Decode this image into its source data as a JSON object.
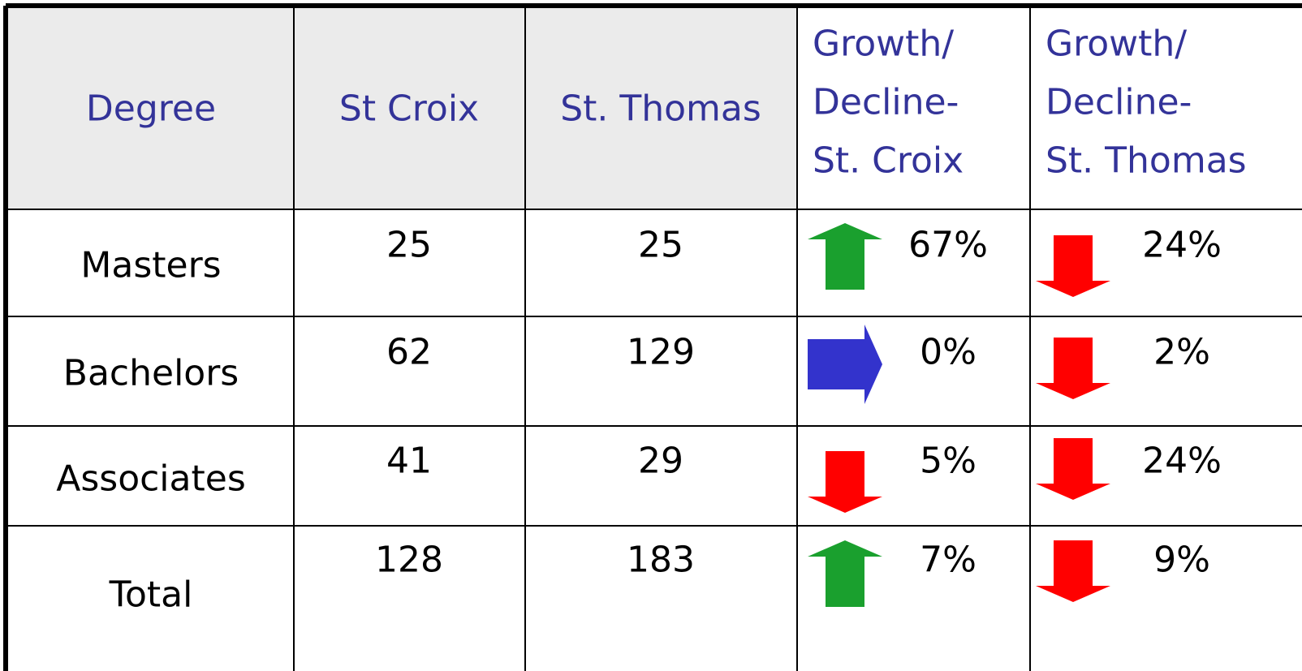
{
  "table": {
    "header": [
      [
        "Degree"
      ],
      [
        "St Croix"
      ],
      [
        "St. Thomas"
      ],
      [
        "Growth/",
        "Decline-",
        "St. Croix"
      ],
      [
        "Growth/",
        "Decline-",
        "St. Thomas"
      ]
    ],
    "rows": [
      [
        "Masters",
        "25",
        "25",
        "67%",
        "24%"
      ],
      [
        "Bachelors",
        "62",
        "129",
        "0%",
        "2%"
      ],
      [
        "Associates",
        "41",
        "29",
        "5%",
        "24%"
      ],
      [
        "Total",
        "128",
        "183",
        "7%",
        "9%"
      ]
    ]
  }
}
